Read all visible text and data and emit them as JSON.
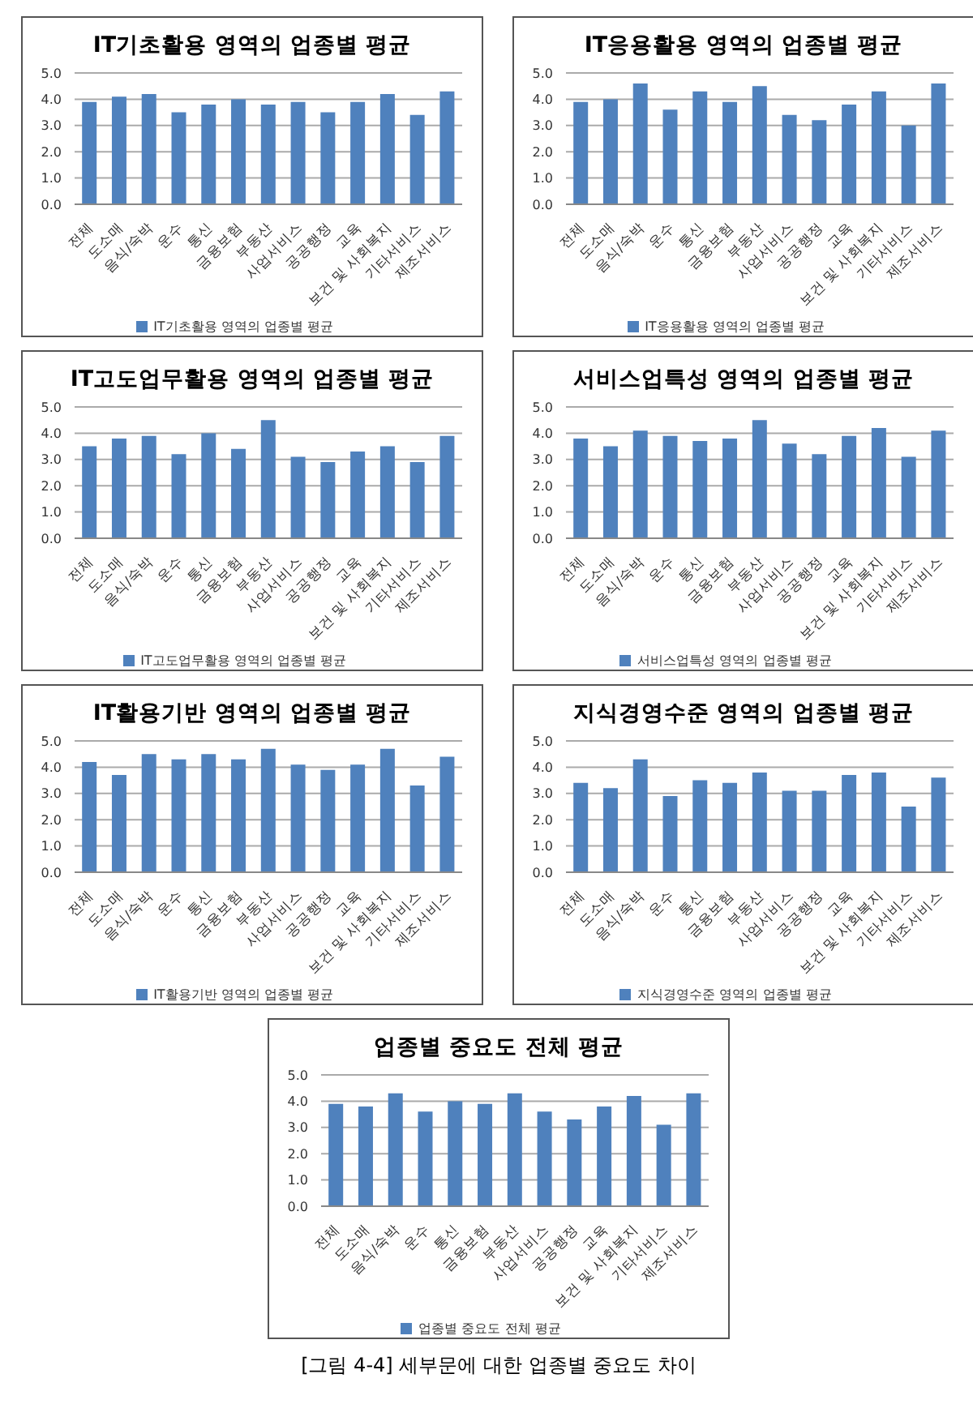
{
  "chart_data": [
    {
      "type": "bar",
      "title": "IT기초활용 영역의 업종별 평균",
      "categories": [
        "전체",
        "도소매",
        "음식/숙박",
        "운수",
        "통신",
        "금융보험",
        "부동산",
        "사업서비스",
        "공공행정",
        "교육",
        "보건 및 사회복지",
        "기타서비스",
        "제조서비스"
      ],
      "series": [
        {
          "name": "IT기초활용 영역의 업종별 평균",
          "color": "#4f81bd",
          "values": [
            3.9,
            4.1,
            4.2,
            3.5,
            3.8,
            4.0,
            3.8,
            3.9,
            3.5,
            3.9,
            4.2,
            3.4,
            4.3
          ]
        }
      ],
      "ylim": [
        0,
        5
      ],
      "yticks": [
        {
          "value": 0,
          "label": "0.0"
        },
        {
          "value": 1,
          "label": "1.0"
        },
        {
          "value": 2,
          "label": "2.0"
        },
        {
          "value": 3,
          "label": "3.0"
        },
        {
          "value": 4,
          "label": "4.0"
        },
        {
          "value": 5,
          "label": "5.0"
        }
      ],
      "grid": "y",
      "legend": "bottom"
    },
    {
      "type": "bar",
      "title": "IT응용활용 영역의 업종별 평균",
      "categories": [
        "전체",
        "도소매",
        "음식/숙박",
        "운수",
        "통신",
        "금융보험",
        "부동산",
        "사업서비스",
        "공공행정",
        "교육",
        "보건 및 사회복지",
        "기타서비스",
        "제조서비스"
      ],
      "series": [
        {
          "name": "IT응용활용 영역의 업종별 평균",
          "color": "#4f81bd",
          "values": [
            3.9,
            4.0,
            4.6,
            3.6,
            4.3,
            3.9,
            4.5,
            3.4,
            3.2,
            3.8,
            4.3,
            3.0,
            4.6
          ]
        }
      ],
      "ylim": [
        0,
        5
      ],
      "yticks": [
        {
          "value": 0,
          "label": "0.0"
        },
        {
          "value": 1,
          "label": "1.0"
        },
        {
          "value": 2,
          "label": "2.0"
        },
        {
          "value": 3,
          "label": "3.0"
        },
        {
          "value": 4,
          "label": "4.0"
        },
        {
          "value": 5,
          "label": "5.0"
        }
      ],
      "grid": "y",
      "legend": "bottom"
    },
    {
      "type": "bar",
      "title": "IT고도업무활용 영역의 업종별 평균",
      "categories": [
        "전체",
        "도소매",
        "음식/숙박",
        "운수",
        "통신",
        "금융보험",
        "부동산",
        "사업서비스",
        "공공행정",
        "교육",
        "보건 및 사회복지",
        "기타서비스",
        "제조서비스"
      ],
      "series": [
        {
          "name": "IT고도업무활용 영역의 업종별 평균",
          "color": "#4f81bd",
          "values": [
            3.5,
            3.8,
            3.9,
            3.2,
            4.0,
            3.4,
            4.5,
            3.1,
            2.9,
            3.3,
            3.5,
            2.9,
            3.9
          ]
        }
      ],
      "ylim": [
        0,
        5
      ],
      "yticks": [
        {
          "value": 0,
          "label": "0.0"
        },
        {
          "value": 1,
          "label": "1.0"
        },
        {
          "value": 2,
          "label": "2.0"
        },
        {
          "value": 3,
          "label": "3.0"
        },
        {
          "value": 4,
          "label": "4.0"
        },
        {
          "value": 5,
          "label": "5.0"
        }
      ],
      "grid": "y",
      "legend": "bottom"
    },
    {
      "type": "bar",
      "title": "서비스업특성 영역의 업종별 평균",
      "categories": [
        "전체",
        "도소매",
        "음식/숙박",
        "운수",
        "통신",
        "금융보험",
        "부동산",
        "사업서비스",
        "공공행정",
        "교육",
        "보건 및 사회복지",
        "기타서비스",
        "제조서비스"
      ],
      "series": [
        {
          "name": "서비스업특성 영역의 업종별 평균",
          "color": "#4f81bd",
          "values": [
            3.8,
            3.5,
            4.1,
            3.9,
            3.7,
            3.8,
            4.5,
            3.6,
            3.2,
            3.9,
            4.2,
            3.1,
            4.1
          ]
        }
      ],
      "ylim": [
        0,
        5
      ],
      "yticks": [
        {
          "value": 0,
          "label": "0.0"
        },
        {
          "value": 1,
          "label": "1.0"
        },
        {
          "value": 2,
          "label": "2.0"
        },
        {
          "value": 3,
          "label": "3.0"
        },
        {
          "value": 4,
          "label": "4.0"
        },
        {
          "value": 5,
          "label": "5.0"
        }
      ],
      "grid": "y",
      "legend": "bottom"
    },
    {
      "type": "bar",
      "title": "IT활용기반 영역의 업종별 평균",
      "categories": [
        "전체",
        "도소매",
        "음식/숙박",
        "운수",
        "통신",
        "금융보험",
        "부동산",
        "사업서비스",
        "공공행정",
        "교육",
        "보건 및 사회복지",
        "기타서비스",
        "제조서비스"
      ],
      "series": [
        {
          "name": "IT활용기반 영역의 업종별 평균",
          "color": "#4f81bd",
          "values": [
            4.2,
            3.7,
            4.5,
            4.3,
            4.5,
            4.3,
            4.7,
            4.1,
            3.9,
            4.1,
            4.7,
            3.3,
            4.4
          ]
        }
      ],
      "ylim": [
        0,
        5
      ],
      "yticks": [
        {
          "value": 0,
          "label": "0.0"
        },
        {
          "value": 1,
          "label": "1.0"
        },
        {
          "value": 2,
          "label": "2.0"
        },
        {
          "value": 3,
          "label": "3.0"
        },
        {
          "value": 4,
          "label": "4.0"
        },
        {
          "value": 5,
          "label": "5.0"
        }
      ],
      "grid": "y",
      "legend": "bottom"
    },
    {
      "type": "bar",
      "title": "지식경영수준 영역의 업종별 평균",
      "categories": [
        "전체",
        "도소매",
        "음식/숙박",
        "운수",
        "통신",
        "금융보험",
        "부동산",
        "사업서비스",
        "공공행정",
        "교육",
        "보건 및 사회복지",
        "기타서비스",
        "제조서비스"
      ],
      "series": [
        {
          "name": "지식경영수준 영역의 업종별 평균",
          "color": "#4f81bd",
          "values": [
            3.4,
            3.2,
            4.3,
            2.9,
            3.5,
            3.4,
            3.8,
            3.1,
            3.1,
            3.7,
            3.8,
            2.5,
            3.6
          ]
        }
      ],
      "ylim": [
        0,
        5
      ],
      "yticks": [
        {
          "value": 0,
          "label": "0.0"
        },
        {
          "value": 1,
          "label": "1.0"
        },
        {
          "value": 2,
          "label": "2.0"
        },
        {
          "value": 3,
          "label": "3.0"
        },
        {
          "value": 4,
          "label": "4.0"
        },
        {
          "value": 5,
          "label": "5.0"
        }
      ],
      "grid": "y",
      "legend": "bottom"
    },
    {
      "type": "bar",
      "title": "업종별 중요도 전체 평균",
      "categories": [
        "전체",
        "도소매",
        "음식/숙박",
        "운수",
        "통신",
        "금융보험",
        "부동산",
        "사업서비스",
        "공공행정",
        "교육",
        "보건 및 사회복지",
        "기타서비스",
        "제조서비스"
      ],
      "series": [
        {
          "name": "업종별 중요도 전체 평균",
          "color": "#4f81bd",
          "values": [
            3.9,
            3.8,
            4.3,
            3.6,
            4.0,
            3.9,
            4.3,
            3.6,
            3.3,
            3.8,
            4.2,
            3.1,
            4.3
          ]
        }
      ],
      "ylim": [
        0,
        5
      ],
      "yticks": [
        {
          "value": 0,
          "label": "0.0"
        },
        {
          "value": 1,
          "label": "1.0"
        },
        {
          "value": 2,
          "label": "2.0"
        },
        {
          "value": 3,
          "label": "3.0"
        },
        {
          "value": 4,
          "label": "4.0"
        },
        {
          "value": 5,
          "label": "5.0"
        }
      ],
      "grid": "y",
      "legend": "bottom",
      "annotations": [
        "[그림 4-4] 세부문에 대한 업종별 중요도 차이"
      ]
    }
  ]
}
